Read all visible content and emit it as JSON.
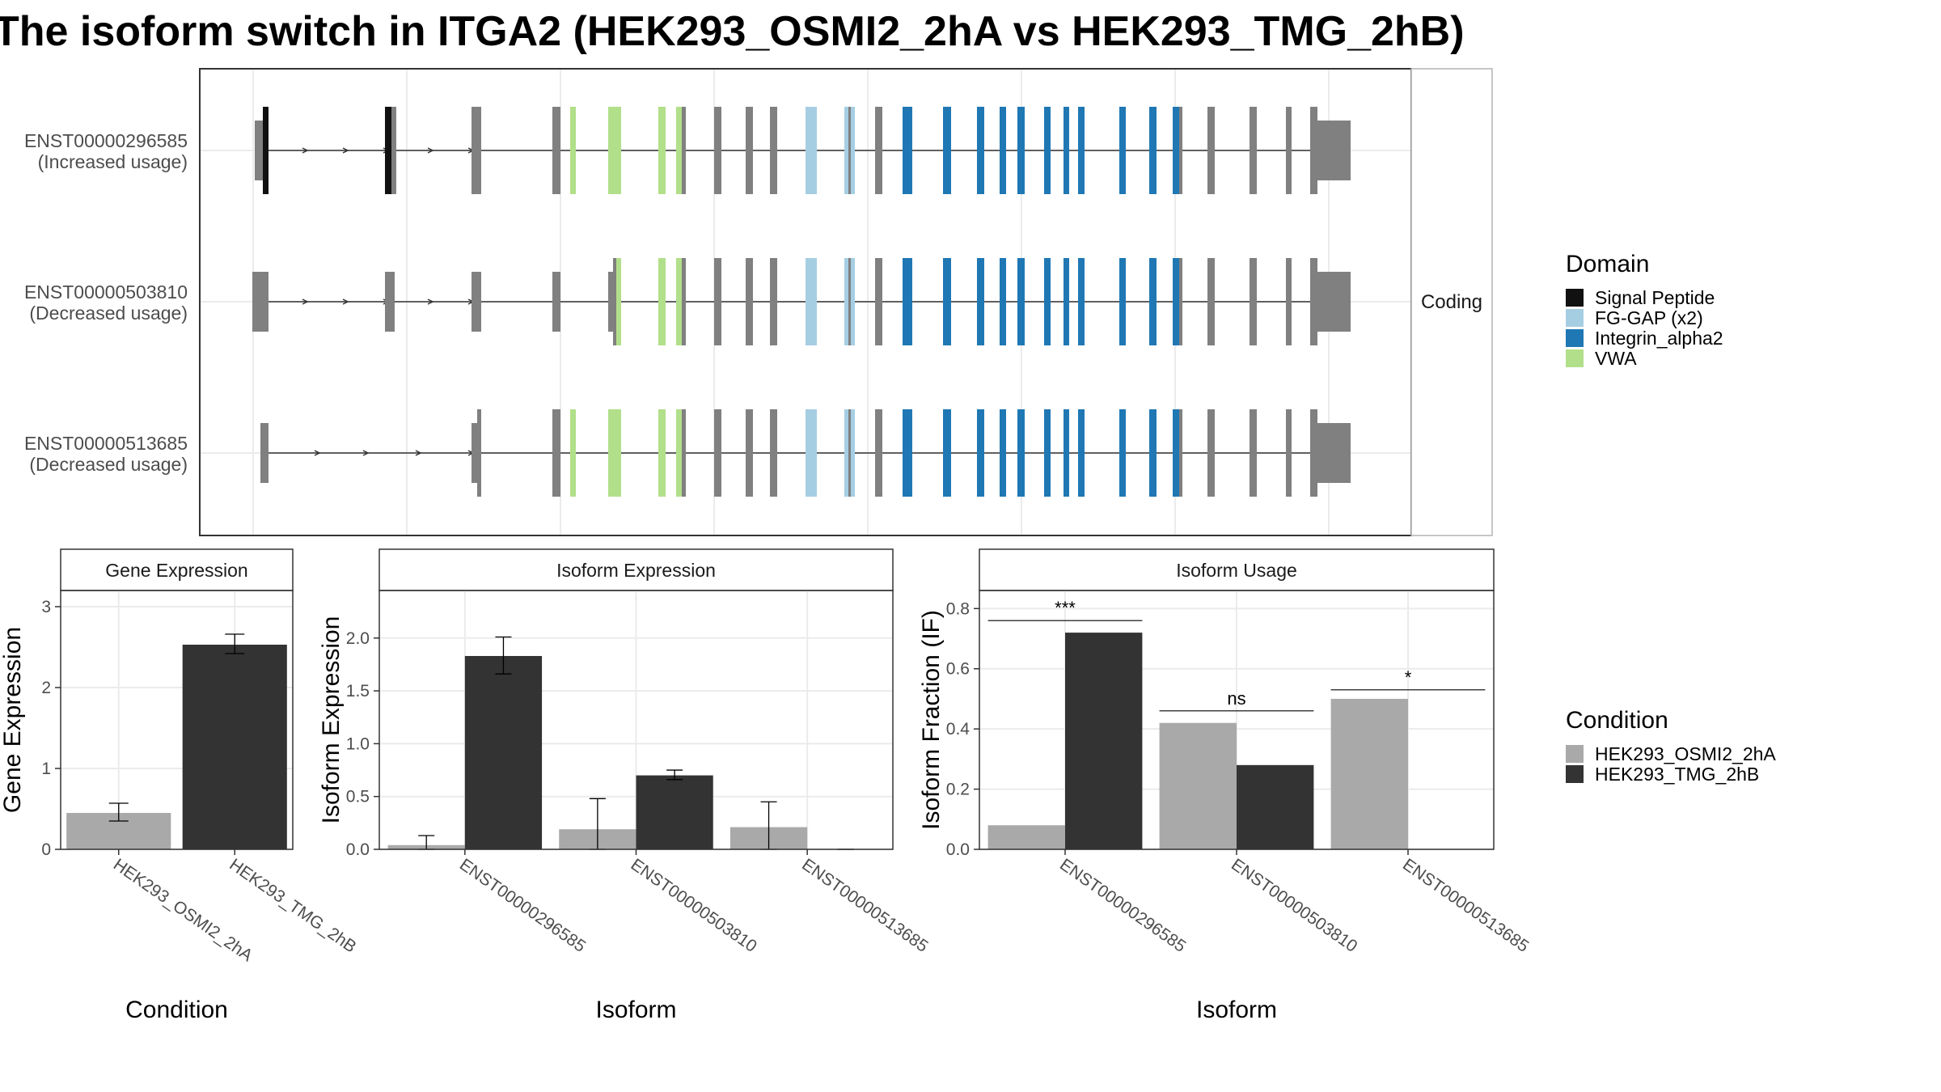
{
  "title": "The isoform switch in ITGA2 (HEK293_OSMI2_2hA vs HEK293_TMG_2hB)",
  "structure": {
    "facet_label": "Coding",
    "isoforms": [
      {
        "id": "ENST00000296585",
        "usage": "(Increased usage)"
      },
      {
        "id": "ENST00000503810",
        "usage": "(Decreased usage)"
      },
      {
        "id": "ENST00000513685",
        "usage": "(Decreased usage)"
      }
    ],
    "domain_legend": {
      "title": "Domain",
      "items": [
        {
          "label": "Signal Peptide",
          "color": "#111111"
        },
        {
          "label": "FG-GAP (x2)",
          "color": "#a6cee3"
        },
        {
          "label": "Integrin_alpha2",
          "color": "#1f78b4"
        },
        {
          "label": "VWA",
          "color": "#b2df8a"
        }
      ]
    },
    "exon_color": "#808080",
    "intron_color": "#333333"
  },
  "condition_legend": {
    "title": "Condition",
    "items": [
      {
        "label": "HEK293_OSMI2_2hA",
        "color": "#a9a9a9"
      },
      {
        "label": "HEK293_TMG_2hB",
        "color": "#333333"
      }
    ]
  },
  "chart_data": [
    {
      "type": "bar",
      "title": "Gene Expression",
      "xlabel": "Condition",
      "ylabel": "Gene Expression",
      "ylim": [
        0,
        3.2
      ],
      "yticks": [
        0,
        1,
        2,
        3
      ],
      "categories": [
        "HEK293_OSMI2_2hA",
        "HEK293_TMG_2hB"
      ],
      "values": [
        0.45,
        2.53
      ],
      "error": [
        [
          0.35,
          0.57
        ],
        [
          2.42,
          2.66
        ]
      ],
      "colors": [
        "#a9a9a9",
        "#333333"
      ]
    },
    {
      "type": "bar",
      "title": "Isoform Expression",
      "xlabel": "Isoform",
      "ylabel": "Isoform Expression",
      "ylim": [
        0,
        2.45
      ],
      "yticks": [
        0.0,
        0.5,
        1.0,
        1.5,
        2.0
      ],
      "ytick_labels": [
        "0.0",
        "0.5",
        "1.0",
        "1.5",
        "2.0"
      ],
      "categories": [
        "ENST00000296585",
        "ENST00000503810",
        "ENST00000513685"
      ],
      "series": [
        {
          "name": "HEK293_OSMI2_2hA",
          "values": [
            0.04,
            0.19,
            0.21
          ],
          "error": [
            [
              0.0,
              0.13
            ],
            [
              0.0,
              0.48
            ],
            [
              0.0,
              0.45
            ]
          ]
        },
        {
          "name": "HEK293_TMG_2hB",
          "values": [
            1.83,
            0.7,
            0.0
          ],
          "error": [
            [
              1.66,
              2.01
            ],
            [
              0.66,
              0.75
            ],
            [
              0.0,
              0.0
            ]
          ]
        }
      ]
    },
    {
      "type": "bar",
      "title": "Isoform Usage",
      "xlabel": "Isoform",
      "ylabel": "Isoform Fraction (IF)",
      "ylim": [
        0,
        0.86
      ],
      "yticks": [
        0.0,
        0.2,
        0.4,
        0.6,
        0.8
      ],
      "ytick_labels": [
        "0.0",
        "0.2",
        "0.4",
        "0.6",
        "0.8"
      ],
      "categories": [
        "ENST00000296585",
        "ENST00000503810",
        "ENST00000513685"
      ],
      "series": [
        {
          "name": "HEK293_OSMI2_2hA",
          "values": [
            0.08,
            0.42,
            0.5
          ]
        },
        {
          "name": "HEK293_TMG_2hB",
          "values": [
            0.72,
            0.28,
            0.0
          ]
        }
      ],
      "significance": [
        {
          "label": "***",
          "y": 0.76
        },
        {
          "label": "ns",
          "y": 0.46
        },
        {
          "label": "*",
          "y": 0.53
        }
      ]
    }
  ]
}
